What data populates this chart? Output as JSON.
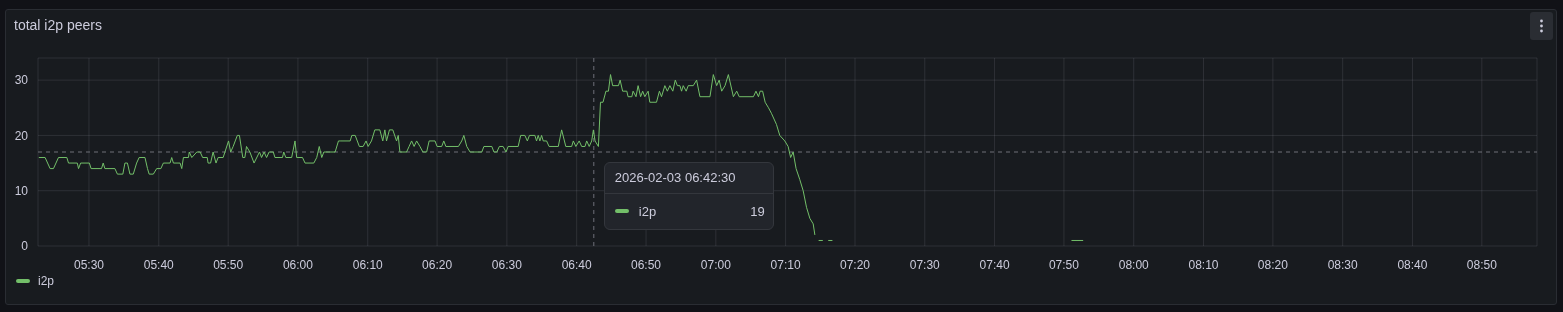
{
  "chart_data": {
    "type": "line",
    "title": "total i2p peers",
    "xlim": [
      5.378,
      8.965
    ],
    "xticks": [
      {
        "value": 5.5,
        "label": "05:30"
      },
      {
        "value": 5.667,
        "label": "05:40"
      },
      {
        "value": 5.833,
        "label": "05:50"
      },
      {
        "value": 6,
        "label": "06:00"
      },
      {
        "value": 6.167,
        "label": "06:10"
      },
      {
        "value": 6.333,
        "label": "06:20"
      },
      {
        "value": 6.5,
        "label": "06:30"
      },
      {
        "value": 6.667,
        "label": "06:40"
      },
      {
        "value": 6.833,
        "label": "06:50"
      },
      {
        "value": 7,
        "label": "07:00"
      },
      {
        "value": 7.167,
        "label": "07:10"
      },
      {
        "value": 7.333,
        "label": "07:20"
      },
      {
        "value": 7.5,
        "label": "07:30"
      },
      {
        "value": 7.667,
        "label": "07:40"
      },
      {
        "value": 7.833,
        "label": "07:50"
      },
      {
        "value": 8,
        "label": "08:00"
      },
      {
        "value": 8.167,
        "label": "08:10"
      },
      {
        "value": 8.333,
        "label": "08:20"
      },
      {
        "value": 8.5,
        "label": "08:30"
      },
      {
        "value": 8.667,
        "label": "08:40"
      },
      {
        "value": 8.833,
        "label": "08:50"
      }
    ],
    "ylim": [
      0,
      34
    ],
    "yticks": [
      0,
      10,
      20,
      30
    ],
    "grid": true,
    "legend": "bottom left",
    "ref_lines": [
      {
        "axis": "x",
        "value": 6.708,
        "line_style": "dashed",
        "color": "#6e7079"
      },
      {
        "axis": "y",
        "value": 17,
        "line_style": "dashed",
        "color": "#6e7079"
      }
    ],
    "annotations": [
      "2026-02-03 06:42:30",
      "19"
    ],
    "series": [
      {
        "name": "i2p",
        "color": "#73bf69",
        "x": [
          5.38,
          5.395,
          5.407,
          5.415,
          5.427,
          5.447,
          5.451,
          5.472,
          5.475,
          5.48,
          5.501,
          5.505,
          5.53,
          5.534,
          5.538,
          5.562,
          5.568,
          5.581,
          5.586,
          5.592,
          5.598,
          5.606,
          5.614,
          5.62,
          5.634,
          5.64,
          5.644,
          5.654,
          5.662,
          5.672,
          5.678,
          5.694,
          5.698,
          5.702,
          5.718,
          5.722,
          5.726,
          5.738,
          5.74,
          5.746,
          5.758,
          5.766,
          5.772,
          5.783,
          5.785,
          5.791,
          5.797,
          5.804,
          5.809,
          5.821,
          5.834,
          5.839,
          5.845,
          5.85,
          5.855,
          5.86,
          5.868,
          5.873,
          5.877,
          5.885,
          5.895,
          5.908,
          5.913,
          5.919,
          5.925,
          5.931,
          5.941,
          5.945,
          5.963,
          5.966,
          5.971,
          5.985,
          5.993,
          5.997,
          6.011,
          6.017,
          6.038,
          6.045,
          6.051,
          6.057,
          6.062,
          6.089,
          6.097,
          6.101,
          6.125,
          6.129,
          6.137,
          6.147,
          6.156,
          6.163,
          6.168,
          6.176,
          6.184,
          6.196,
          6.203,
          6.208,
          6.212,
          6.219,
          6.227,
          6.236,
          6.24,
          6.244,
          6.26,
          6.266,
          6.272,
          6.278,
          6.284,
          6.292,
          6.299,
          6.308,
          6.314,
          6.328,
          6.333,
          6.344,
          6.349,
          6.354,
          6.384,
          6.392,
          6.397,
          6.404,
          6.412,
          6.44,
          6.445,
          6.464,
          6.469,
          6.476,
          6.482,
          6.491,
          6.498,
          6.503,
          6.527,
          6.533,
          6.543,
          6.549,
          6.554,
          6.567,
          6.571,
          6.575,
          6.579,
          6.583,
          6.587,
          6.595,
          6.601,
          6.623,
          6.631,
          6.641,
          6.655,
          6.659,
          6.665,
          6.673,
          6.679,
          6.687,
          6.691,
          6.697,
          6.703,
          6.707,
          6.711,
          6.719,
          6.724,
          6.73,
          6.737,
          6.743,
          6.748,
          6.753,
          6.767,
          6.771,
          6.777,
          6.787,
          6.79,
          6.799,
          6.802,
          6.809,
          6.814,
          6.82,
          6.825,
          6.83,
          6.838,
          6.842,
          6.858,
          6.865,
          6.87,
          6.878,
          6.884,
          6.89,
          6.897,
          6.903,
          6.908,
          6.914,
          6.918,
          6.922,
          6.929,
          6.934,
          6.946,
          6.954,
          6.962,
          6.986,
          6.994,
          7.002,
          7.008,
          7.014,
          7.022,
          7.03,
          7.042,
          7.05,
          7.056,
          7.09,
          7.096,
          7.102,
          7.106,
          7.112,
          7.118,
          7.126,
          7.133,
          7.145,
          7.153,
          7.165,
          7.173,
          7.179,
          7.185,
          7.192,
          7.201,
          7.209,
          7.217,
          7.225,
          7.233,
          7.237,
          7.243,
          7.246,
          7.256,
          7.261,
          7.269,
          7.279,
          7.3,
          7.851,
          7.879
        ],
        "values": [
          16,
          16,
          14,
          14,
          16,
          16,
          15,
          15,
          14,
          15,
          15,
          14,
          14,
          15,
          14,
          14,
          13,
          13,
          15,
          15,
          13,
          13,
          15,
          16,
          16,
          14,
          13,
          13,
          14,
          14,
          15,
          15,
          16,
          15,
          15,
          14,
          16,
          16,
          17,
          16,
          17,
          17,
          16,
          16,
          15,
          15,
          17,
          15,
          16,
          16,
          19,
          17,
          18,
          19,
          20,
          20,
          16,
          16,
          18,
          17,
          15,
          17,
          16,
          17,
          16,
          17,
          17,
          16,
          16,
          17,
          16,
          16,
          19,
          16,
          16,
          15,
          15,
          16,
          18,
          16,
          17,
          17,
          19,
          19,
          19,
          20,
          20,
          18,
          18,
          19,
          18,
          19,
          21,
          21,
          19,
          21,
          19,
          21,
          21,
          19,
          20,
          17,
          17,
          18,
          19,
          18,
          19,
          18,
          17,
          17,
          19,
          19,
          18,
          18,
          19,
          18,
          18,
          19,
          20,
          18,
          17,
          17,
          18,
          18,
          17,
          17,
          18,
          18,
          17,
          18,
          18,
          20,
          20,
          19,
          20,
          20,
          19,
          20,
          19,
          20,
          19,
          19,
          18,
          18,
          21,
          18,
          18,
          19,
          18,
          19,
          18,
          18,
          19,
          18,
          19,
          21,
          19,
          18,
          26,
          26,
          28,
          28,
          31,
          29,
          29,
          30,
          28,
          28,
          27,
          27,
          28,
          27,
          29,
          27,
          28,
          27,
          28,
          26,
          26,
          28,
          27,
          29,
          28,
          29,
          28,
          30,
          29,
          29,
          28,
          29,
          28,
          29,
          29,
          30,
          27,
          27,
          31,
          29,
          30,
          28,
          29,
          31,
          27,
          28,
          27,
          27,
          28,
          27,
          28,
          28,
          26,
          25,
          24,
          22,
          20,
          19,
          18,
          16,
          17,
          14,
          12,
          10,
          7,
          5,
          4,
          2,
          null,
          1,
          1,
          null,
          1,
          1,
          null,
          1,
          1
        ]
      }
    ]
  }
}
